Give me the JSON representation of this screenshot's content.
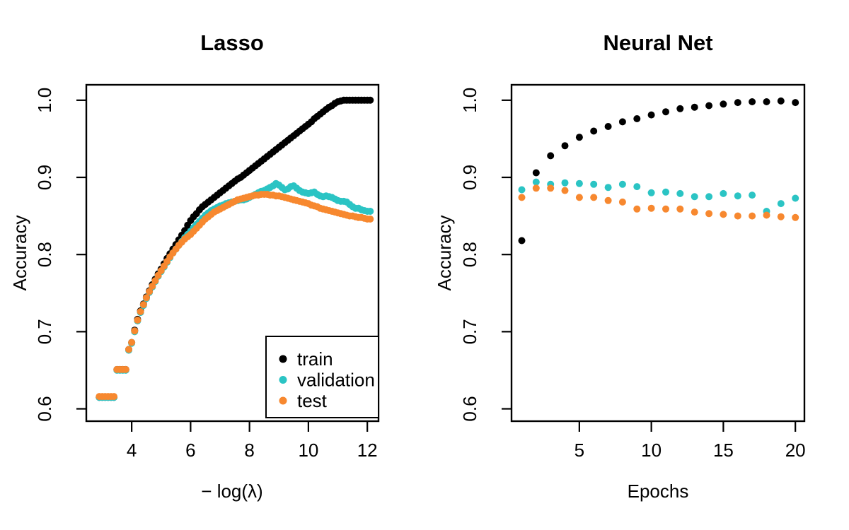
{
  "colors": {
    "background": "#FFFFFF",
    "axis": "#000000"
  },
  "chart_data": [
    {
      "type": "scatter",
      "title": "Lasso",
      "xlabel": "− log(λ)",
      "ylabel": "Accuracy",
      "xlim": [
        2.46,
        12.38
      ],
      "ylim": [
        0.584,
        1.02
      ],
      "x_ticks": [
        4,
        6,
        8,
        10,
        12
      ],
      "y_ticks": [
        1.0,
        0.9,
        0.8,
        0.7,
        0.6
      ],
      "y_tick_labels": [
        "1.0",
        "0.9",
        "0.8",
        "0.7",
        "0.6"
      ],
      "grid": false,
      "legend": {
        "position": "bottom-right",
        "entries": [
          "train",
          "validation",
          "test"
        ]
      },
      "x": [
        2.9,
        3.0,
        3.1,
        3.2,
        3.3,
        3.4,
        3.5,
        3.6,
        3.7,
        3.8,
        3.9,
        4.0,
        4.1,
        4.2,
        4.3,
        4.4,
        4.5,
        4.6,
        4.7,
        4.8,
        4.9,
        5.0,
        5.1,
        5.2,
        5.3,
        5.4,
        5.5,
        5.6,
        5.7,
        5.8,
        5.9,
        6.0,
        6.1,
        6.2,
        6.3,
        6.4,
        6.5,
        6.6,
        6.7,
        6.8,
        6.9,
        7.0,
        7.1,
        7.2,
        7.3,
        7.4,
        7.5,
        7.6,
        7.7,
        7.8,
        7.9,
        8.0,
        8.1,
        8.2,
        8.3,
        8.4,
        8.5,
        8.6,
        8.7,
        8.8,
        8.9,
        9.0,
        9.1,
        9.2,
        9.3,
        9.4,
        9.5,
        9.6,
        9.7,
        9.8,
        9.9,
        10.0,
        10.1,
        10.2,
        10.3,
        10.4,
        10.5,
        10.6,
        10.7,
        10.8,
        10.9,
        11.0,
        11.1,
        11.2,
        11.3,
        11.4,
        11.5,
        11.6,
        11.7,
        11.8,
        11.9,
        12.0,
        12.1
      ],
      "series": [
        {
          "name": "train",
          "color": "#000000",
          "values": [
            0.615,
            0.615,
            0.615,
            0.615,
            0.615,
            0.615,
            0.651,
            0.651,
            0.651,
            0.651,
            0.677,
            0.686,
            0.702,
            0.716,
            0.727,
            0.736,
            0.745,
            0.753,
            0.761,
            0.768,
            0.775,
            0.781,
            0.788,
            0.795,
            0.801,
            0.807,
            0.813,
            0.819,
            0.825,
            0.831,
            0.838,
            0.844,
            0.849,
            0.853,
            0.858,
            0.862,
            0.865,
            0.868,
            0.871,
            0.874,
            0.877,
            0.88,
            0.883,
            0.886,
            0.889,
            0.892,
            0.895,
            0.898,
            0.9,
            0.903,
            0.906,
            0.909,
            0.912,
            0.915,
            0.918,
            0.921,
            0.924,
            0.927,
            0.93,
            0.933,
            0.936,
            0.939,
            0.942,
            0.945,
            0.948,
            0.951,
            0.954,
            0.957,
            0.96,
            0.963,
            0.966,
            0.969,
            0.972,
            0.976,
            0.979,
            0.982,
            0.985,
            0.988,
            0.991,
            0.993,
            0.996,
            0.998,
            0.999,
            1.0,
            1.0,
            1.0,
            1.0,
            1.0,
            1.0,
            1.0,
            1.0,
            1.0,
            1.0
          ]
        },
        {
          "name": "validation",
          "color": "#2BC4C4",
          "values": [
            0.615,
            0.615,
            0.615,
            0.615,
            0.615,
            0.615,
            0.65,
            0.65,
            0.65,
            0.65,
            0.676,
            0.685,
            0.7,
            0.714,
            0.725,
            0.734,
            0.743,
            0.751,
            0.758,
            0.765,
            0.772,
            0.778,
            0.784,
            0.79,
            0.796,
            0.802,
            0.807,
            0.812,
            0.817,
            0.822,
            0.826,
            0.83,
            0.835,
            0.839,
            0.843,
            0.847,
            0.851,
            0.854,
            0.857,
            0.859,
            0.861,
            0.863,
            0.864,
            0.866,
            0.867,
            0.868,
            0.869,
            0.87,
            0.871,
            0.871,
            0.872,
            0.874,
            0.876,
            0.878,
            0.88,
            0.882,
            0.883,
            0.885,
            0.887,
            0.889,
            0.892,
            0.89,
            0.887,
            0.884,
            0.885,
            0.888,
            0.889,
            0.886,
            0.883,
            0.881,
            0.88,
            0.879,
            0.88,
            0.881,
            0.878,
            0.876,
            0.875,
            0.876,
            0.875,
            0.874,
            0.872,
            0.87,
            0.869,
            0.869,
            0.868,
            0.865,
            0.862,
            0.86,
            0.86,
            0.858,
            0.857,
            0.856,
            0.856
          ]
        },
        {
          "name": "test",
          "color": "#F7882F",
          "values": [
            0.616,
            0.616,
            0.616,
            0.616,
            0.616,
            0.616,
            0.651,
            0.651,
            0.651,
            0.651,
            0.677,
            0.686,
            0.701,
            0.715,
            0.726,
            0.735,
            0.744,
            0.752,
            0.759,
            0.766,
            0.773,
            0.779,
            0.785,
            0.791,
            0.797,
            0.802,
            0.807,
            0.812,
            0.816,
            0.82,
            0.823,
            0.826,
            0.83,
            0.834,
            0.838,
            0.842,
            0.846,
            0.849,
            0.852,
            0.855,
            0.857,
            0.859,
            0.861,
            0.863,
            0.865,
            0.867,
            0.869,
            0.871,
            0.872,
            0.873,
            0.874,
            0.875,
            0.876,
            0.877,
            0.877,
            0.878,
            0.878,
            0.878,
            0.877,
            0.877,
            0.876,
            0.876,
            0.875,
            0.874,
            0.873,
            0.872,
            0.871,
            0.87,
            0.869,
            0.868,
            0.867,
            0.866,
            0.864,
            0.863,
            0.862,
            0.86,
            0.859,
            0.858,
            0.857,
            0.856,
            0.855,
            0.854,
            0.853,
            0.852,
            0.851,
            0.85,
            0.85,
            0.849,
            0.848,
            0.848,
            0.847,
            0.846,
            0.846
          ]
        }
      ]
    },
    {
      "type": "scatter",
      "title": "Neural Net",
      "xlabel": "Epochs",
      "ylabel": "Accuracy",
      "xlim": [
        0.29,
        20.63
      ],
      "ylim": [
        0.584,
        1.02
      ],
      "x_ticks": [
        5,
        10,
        15,
        20
      ],
      "y_ticks": [
        1.0,
        0.9,
        0.8,
        0.7,
        0.6
      ],
      "y_tick_labels": [
        "1.0",
        "0.9",
        "0.8",
        "0.7",
        "0.6"
      ],
      "grid": false,
      "x": [
        1,
        2,
        3,
        4,
        5,
        6,
        7,
        8,
        9,
        10,
        11,
        12,
        13,
        14,
        15,
        16,
        17,
        18,
        19,
        20
      ],
      "series": [
        {
          "name": "train",
          "color": "#000000",
          "values": [
            0.818,
            0.906,
            0.928,
            0.941,
            0.952,
            0.96,
            0.966,
            0.972,
            0.976,
            0.981,
            0.985,
            0.989,
            0.991,
            0.993,
            0.995,
            0.997,
            0.998,
            0.998,
            0.999,
            0.997
          ]
        },
        {
          "name": "validation",
          "color": "#2BC4C4",
          "values": [
            0.884,
            0.894,
            0.891,
            0.893,
            0.892,
            0.891,
            0.887,
            0.891,
            0.888,
            0.88,
            0.881,
            0.879,
            0.875,
            0.875,
            0.879,
            0.876,
            0.877,
            0.856,
            0.866,
            0.873
          ]
        },
        {
          "name": "test",
          "color": "#F7882F",
          "values": [
            0.874,
            0.886,
            0.886,
            0.883,
            0.874,
            0.874,
            0.87,
            0.868,
            0.859,
            0.86,
            0.859,
            0.859,
            0.855,
            0.853,
            0.852,
            0.85,
            0.85,
            0.851,
            0.849,
            0.848
          ]
        }
      ]
    }
  ]
}
